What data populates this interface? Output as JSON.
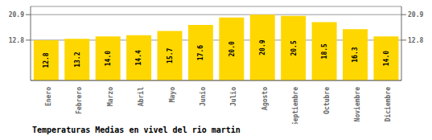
{
  "chart_data": {
    "type": "bar",
    "title": "Temperaturas Medias en vivel del rio martin",
    "categories": [
      "Enero",
      "Febrero",
      "Marzo",
      "Abril",
      "Mayo",
      "Junio",
      "Julio",
      "Agosto",
      "Septiembre",
      "Octubre",
      "Noviembre",
      "Diciembre"
    ],
    "values": [
      12.8,
      13.2,
      14.0,
      14.4,
      15.7,
      17.6,
      20.0,
      20.9,
      20.5,
      18.5,
      16.3,
      14.0
    ],
    "value_labels": [
      "12.8",
      "13.2",
      "14.0",
      "14.4",
      "15.7",
      "17.6",
      "20.0",
      "20.9",
      "20.5",
      "18.5",
      "16.3",
      "14.0"
    ],
    "color": "#FFD700",
    "ylim": [
      0,
      23.5
    ],
    "yticks": [
      12.8,
      20.9
    ],
    "y2lim": [
      0,
      23.5
    ],
    "y2ticks": [
      12.8,
      20.9
    ],
    "grid": true,
    "data_labels": true
  }
}
